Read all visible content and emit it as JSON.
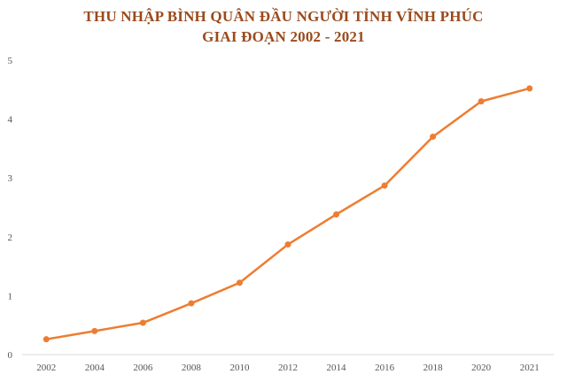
{
  "chart_data": {
    "type": "line",
    "title_lines": [
      "THU NHẬP BÌNH QUÂN ĐẦU NGƯỜI TỈNH VĨNH PHÚC",
      "GIAI ĐOẠN 2002 - 2021"
    ],
    "xlabel": "",
    "ylabel": "",
    "categories": [
      "2002",
      "2004",
      "2006",
      "2008",
      "2010",
      "2012",
      "2014",
      "2016",
      "2018",
      "2020",
      "2021"
    ],
    "y_ticks": [
      "0",
      "1",
      "2",
      "3",
      "4",
      "5"
    ],
    "ylim": [
      0,
      5
    ],
    "grid": false,
    "legend": "none",
    "series": [
      {
        "values": [
          0.26,
          0.4,
          0.54,
          0.87,
          1.22,
          1.87,
          2.38,
          2.87,
          3.7,
          4.3,
          4.52
        ],
        "color": "#ed7d31"
      }
    ]
  }
}
